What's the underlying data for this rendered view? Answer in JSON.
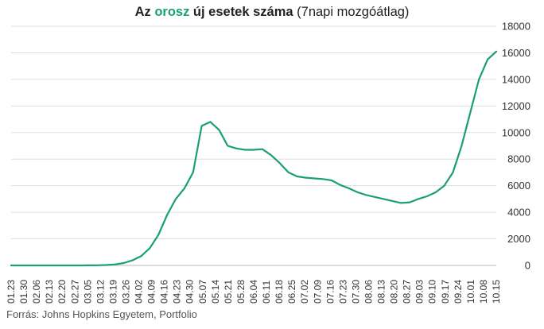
{
  "title": {
    "part1": "Az ",
    "highlight": "orosz",
    "part2": " új esetek száma",
    "part3": " (7napi mozgóátlag)"
  },
  "source": "Forrás: Johns Hopkins Egyetem, Portfolio",
  "colors": {
    "line": "#1a9e7a",
    "highlight": "#1a9e7a",
    "grid": "#dddddd",
    "text": "#333333"
  },
  "chart_data": {
    "type": "line",
    "title": "Az orosz új esetek száma (7napi mozgóátlag)",
    "xlabel": "",
    "ylabel": "",
    "ylim": [
      0,
      18000
    ],
    "yticks": [
      0,
      2000,
      4000,
      6000,
      8000,
      10000,
      12000,
      14000,
      16000,
      18000
    ],
    "x_tick_labels": [
      "01.23",
      "01.30",
      "02.06",
      "02.13",
      "02.20",
      "02.27",
      "03.05",
      "03.12",
      "03.19",
      "03.26",
      "04.02",
      "04.09",
      "04.16",
      "04.23",
      "04.30",
      "05.07",
      "05.14",
      "05.21",
      "05.28",
      "06.04",
      "06.11",
      "06.18",
      "06.25",
      "07.02",
      "07.09",
      "07.16",
      "07.23",
      "07.30",
      "08.06",
      "08.13",
      "08.20",
      "08.27",
      "09.03",
      "09.10",
      "09.17",
      "09.24",
      "10.01",
      "10.08",
      "10.15"
    ],
    "grid": true,
    "y_axis_position": "right",
    "series": [
      {
        "values": [
          0,
          0,
          0,
          0,
          0,
          0,
          0,
          0,
          2,
          5,
          12,
          30,
          80,
          180,
          380,
          700,
          1300,
          2300,
          3800,
          5000,
          5800,
          7000,
          10500,
          10800,
          10200,
          9000,
          8800,
          8700,
          8700,
          8750,
          8300,
          7700,
          7000,
          6700,
          6600,
          6550,
          6500,
          6400,
          6050,
          5800,
          5500,
          5300,
          5150,
          5000,
          4850,
          4700,
          4750,
          5000,
          5200,
          5500,
          6000,
          7000,
          9000,
          11500,
          14000,
          15500,
          16100
        ]
      }
    ]
  }
}
